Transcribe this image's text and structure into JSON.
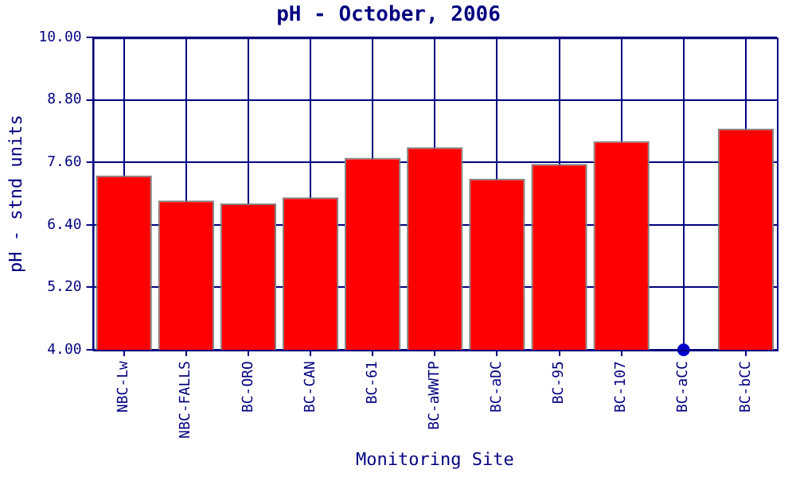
{
  "chart_data": {
    "type": "bar",
    "title": "pH - October, 2006",
    "xlabel": "Monitoring Site",
    "ylabel": "pH - stnd units",
    "categories": [
      "NBC-Lw",
      "NBC-FALLS",
      "BC-ORO",
      "BC-CAN",
      "BC-61",
      "BC-aWWTP",
      "BC-aDC",
      "BC-95",
      "BC-107",
      "BC-aCC",
      "BC-bCC"
    ],
    "series": [
      {
        "color": "#ff0000",
        "values": [
          7.35,
          6.87,
          6.81,
          6.93,
          7.69,
          7.89,
          7.29,
          7.57,
          8.01,
          null,
          8.25
        ]
      },
      {
        "type": "scatter",
        "color": "#0000cc",
        "x": [
          "BC-aCC"
        ],
        "values": [
          4.0
        ]
      }
    ],
    "ylim": [
      4,
      10
    ],
    "yticks": [
      {
        "value": 4,
        "label": "4.00"
      },
      {
        "value": 5.2,
        "label": "5.20"
      },
      {
        "value": 6.4,
        "label": "6.40"
      },
      {
        "value": 7.6,
        "label": "7.60"
      },
      {
        "value": 8.8,
        "label": "8.80"
      },
      {
        "value": 10,
        "label": "10.00"
      }
    ],
    "grid": true,
    "marker": "circle"
  }
}
